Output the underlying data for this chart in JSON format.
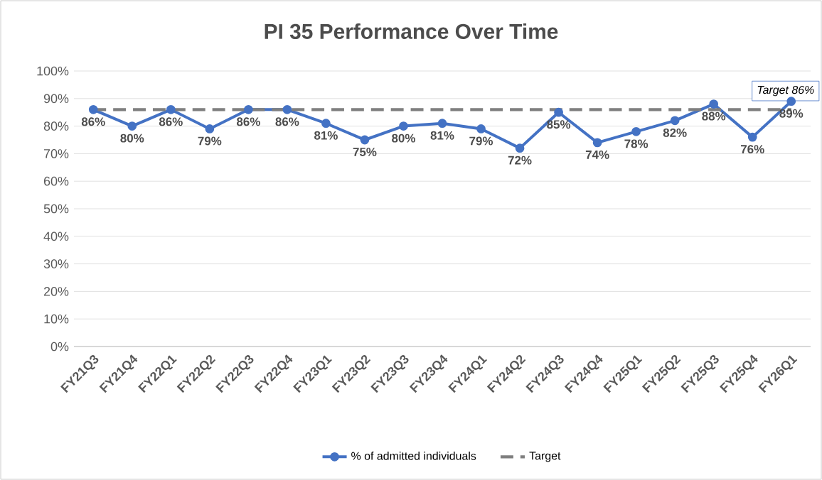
{
  "chart_data": {
    "type": "line",
    "title": "PI 35 Performance Over Time",
    "categories": [
      "FY21Q3",
      "FY21Q4",
      "FY22Q1",
      "FY22Q2",
      "FY22Q3",
      "FY22Q4",
      "FY23Q1",
      "FY23Q2",
      "FY23Q3",
      "FY23Q4",
      "FY24Q1",
      "FY24Q2",
      "FY24Q3",
      "FY24Q4",
      "FY25Q1",
      "FY25Q2",
      "FY25Q3",
      "FY25Q4",
      "FY26Q1"
    ],
    "series": [
      {
        "name": "% of admitted individuals",
        "color": "#4472c4",
        "marker": "circle",
        "line_style": "solid",
        "values": [
          86,
          80,
          86,
          79,
          86,
          86,
          81,
          75,
          80,
          81,
          79,
          72,
          85,
          74,
          78,
          82,
          88,
          76,
          89
        ],
        "value_labels": [
          "86%",
          "80%",
          "86%",
          "79%",
          "86%",
          "86%",
          "81%",
          "75%",
          "80%",
          "81%",
          "79%",
          "72%",
          "85%",
          "74%",
          "78%",
          "82%",
          "88%",
          "76%",
          "89%"
        ]
      },
      {
        "name": "Target",
        "color": "#7f7f7f",
        "marker": "none",
        "line_style": "dashed",
        "values": [
          86,
          86,
          86,
          86,
          86,
          86,
          86,
          86,
          86,
          86,
          86,
          86,
          86,
          86,
          86,
          86,
          86,
          86,
          86
        ]
      }
    ],
    "ylim": [
      0,
      100
    ],
    "yticks": [
      {
        "value": 0,
        "label": "0%"
      },
      {
        "value": 10,
        "label": "10%"
      },
      {
        "value": 20,
        "label": "20%"
      },
      {
        "value": 30,
        "label": "30%"
      },
      {
        "value": 40,
        "label": "40%"
      },
      {
        "value": 50,
        "label": "50%"
      },
      {
        "value": 60,
        "label": "60%"
      },
      {
        "value": 70,
        "label": "70%"
      },
      {
        "value": 80,
        "label": "80%"
      },
      {
        "value": 90,
        "label": "90%"
      },
      {
        "value": 100,
        "label": "100%"
      }
    ],
    "grid": "y",
    "legend": "bottom",
    "annotations": [
      {
        "text": "Target 86%",
        "x": "FY26Q1",
        "y": 86
      }
    ]
  }
}
